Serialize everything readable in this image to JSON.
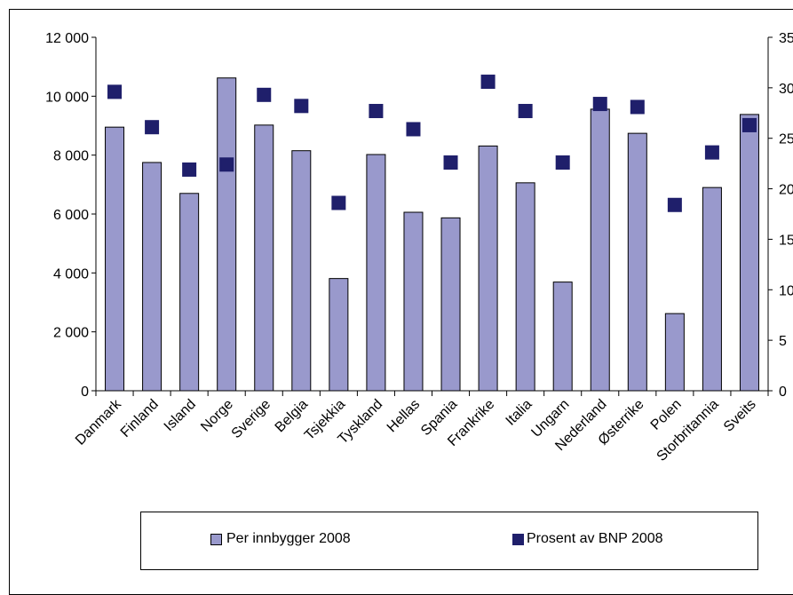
{
  "chart_data": {
    "type": "bar",
    "categories": [
      "Danmark",
      "Finland",
      "Island",
      "Norge",
      "Sverige",
      "Belgia",
      "Tsjekkia",
      "Tyskland",
      "Hellas",
      "Spania",
      "Frankrike",
      "Italia",
      "Ungarn",
      "Nederland",
      "Østerrike",
      "Polen",
      "Storbritannia",
      "Sveits"
    ],
    "series": [
      {
        "name": "Per innbygger 2008",
        "kind": "bar",
        "axis": "left",
        "color": "#9999cc",
        "values": [
          8950,
          7750,
          6700,
          10620,
          9020,
          8150,
          3810,
          8020,
          6060,
          5870,
          8310,
          7060,
          3690,
          9560,
          8740,
          2620,
          6900,
          9380
        ]
      },
      {
        "name": "Prosent av BNP 2008",
        "kind": "marker",
        "axis": "right",
        "color": "#1f1f6b",
        "values": [
          29.6,
          26.1,
          21.9,
          22.4,
          29.3,
          28.2,
          18.6,
          27.7,
          25.9,
          22.6,
          30.6,
          27.7,
          22.6,
          28.4,
          28.1,
          18.4,
          23.6,
          26.3
        ]
      }
    ],
    "y_left": {
      "ylim": [
        0,
        12000
      ],
      "ticks": [
        "0",
        "2 000",
        "4 000",
        "6 000",
        "8 000",
        "10 000",
        "12 000"
      ]
    },
    "y_right": {
      "ylim": [
        0,
        35
      ],
      "ticks": [
        "0",
        "5",
        "10",
        "15",
        "20",
        "25",
        "30",
        "35"
      ]
    },
    "legend": {
      "position": "bottom"
    },
    "grid": false
  }
}
